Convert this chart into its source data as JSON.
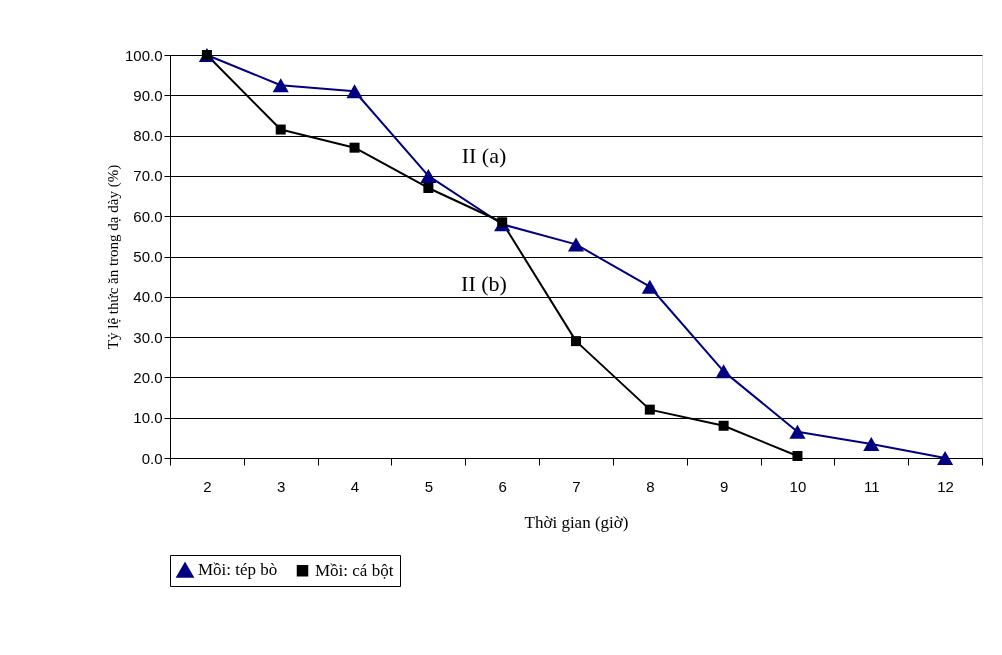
{
  "chart_data": {
    "type": "line",
    "xlabel": "Thời gian (giờ)",
    "ylabel": "Tỷ lệ thức ăn trong dạ dày (%)",
    "categories": [
      "2",
      "3",
      "4",
      "5",
      "6",
      "7",
      "8",
      "9",
      "10",
      "11",
      "12"
    ],
    "series": [
      {
        "name": "Mồi: tép bò",
        "color": "#000080",
        "marker": "triangle",
        "values": [
          100,
          92.5,
          91,
          70,
          58,
          53,
          42.5,
          21.5,
          6.5,
          3.5,
          0
        ]
      },
      {
        "name": "Mồi: cá bột",
        "color": "#000000",
        "marker": "square",
        "values": [
          100,
          81.5,
          77,
          67,
          58.5,
          29,
          12,
          8,
          0.5,
          null,
          null
        ]
      }
    ],
    "ylim": [
      0,
      100
    ],
    "yticks": [
      {
        "value": 0,
        "label": "0.0"
      },
      {
        "value": 10,
        "label": "10.0"
      },
      {
        "value": 20,
        "label": "20.0"
      },
      {
        "value": 30,
        "label": "30.0"
      },
      {
        "value": 40,
        "label": "40.0"
      },
      {
        "value": 50,
        "label": "50.0"
      },
      {
        "value": 60,
        "label": "60.0"
      },
      {
        "value": 70,
        "label": "70.0"
      },
      {
        "value": 80,
        "label": "80.0"
      },
      {
        "value": 90,
        "label": "90.0"
      },
      {
        "value": 100,
        "label": "100.0"
      }
    ],
    "grid": "y",
    "legend": "bottom",
    "line_style": "solid",
    "annotations": [
      "II (a)",
      "II (b)"
    ]
  }
}
